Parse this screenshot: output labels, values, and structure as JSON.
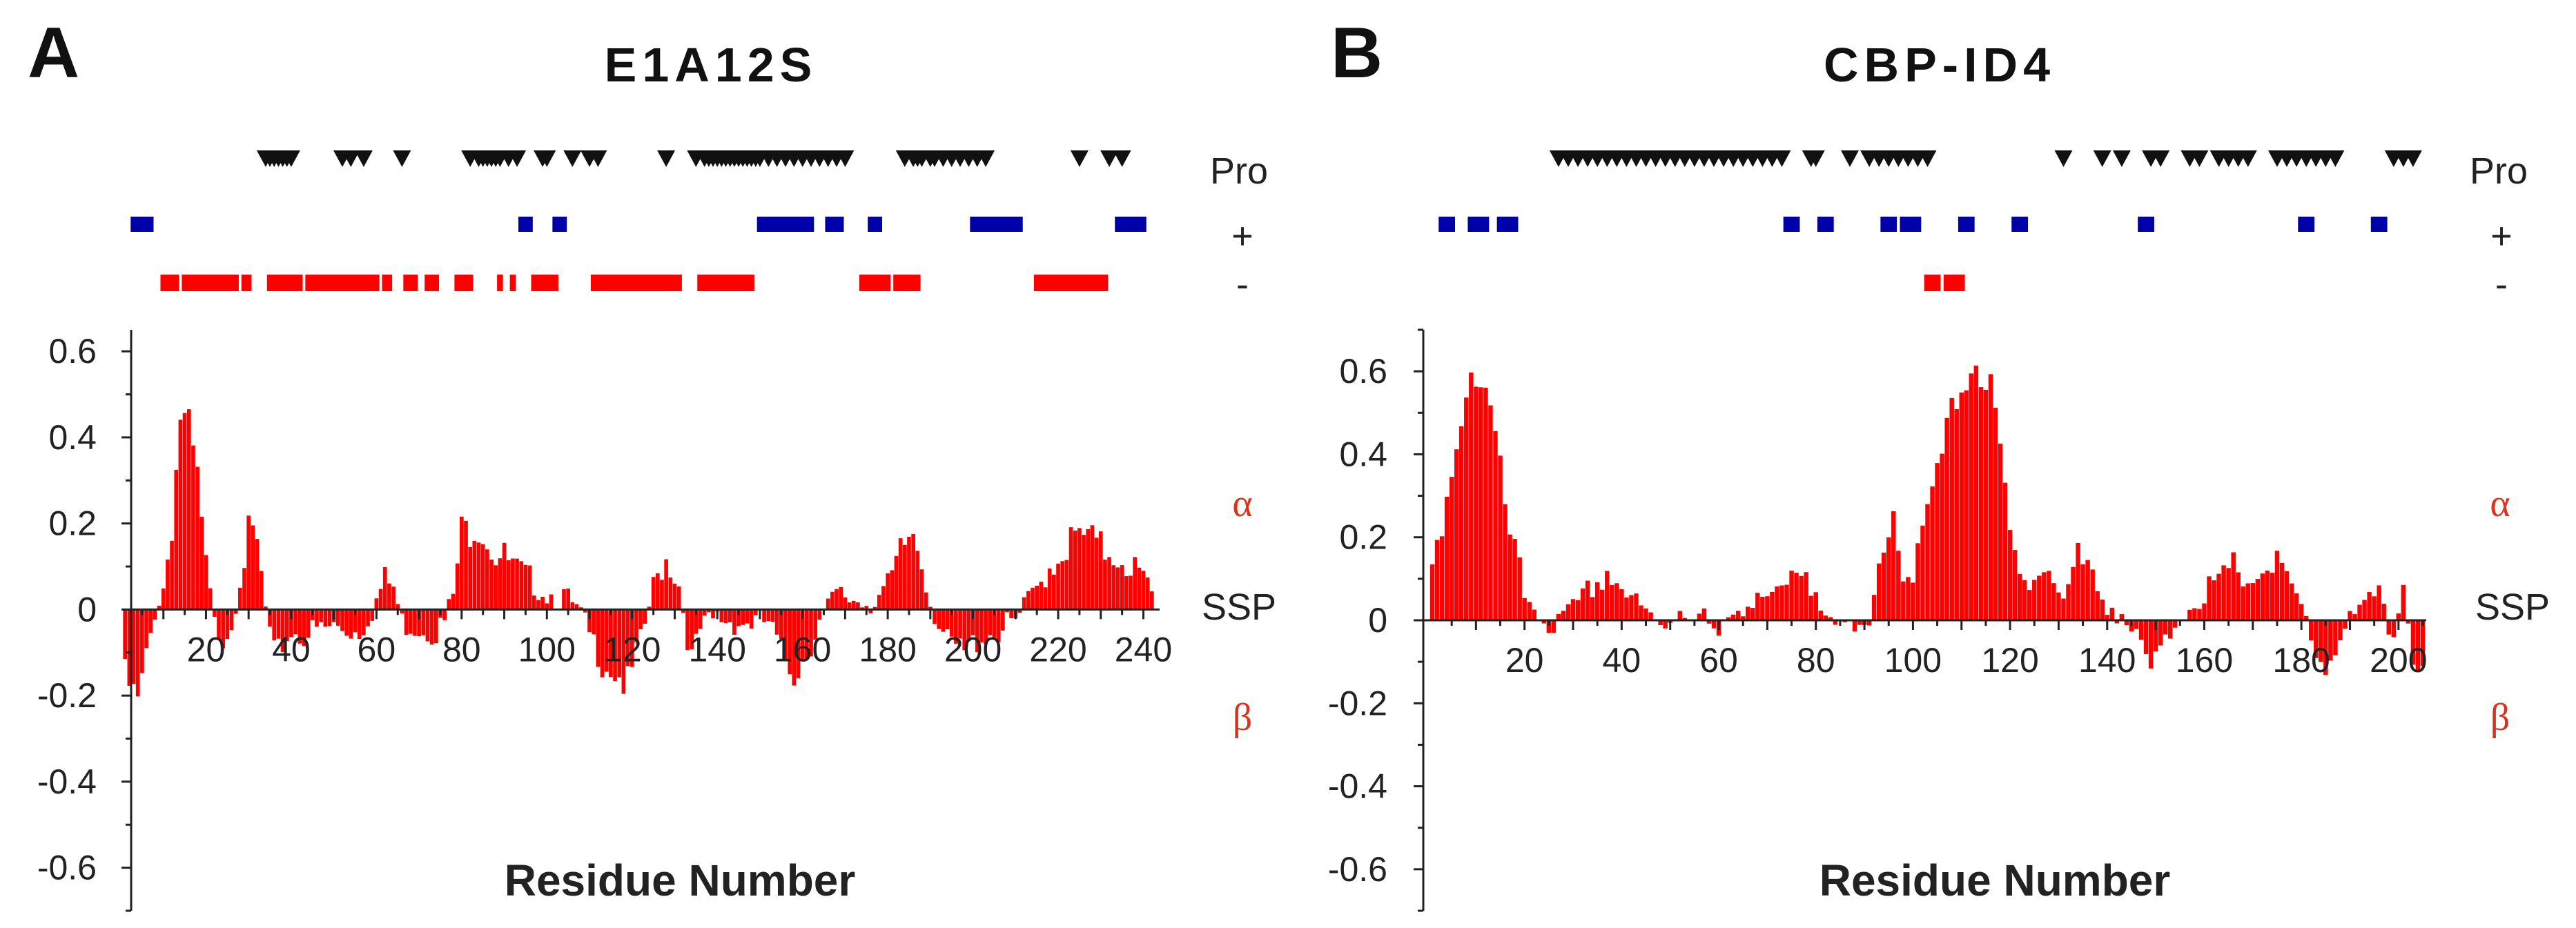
{
  "colors": {
    "helix": "#ff0000",
    "pro": "#111111",
    "positive": "#0000a8",
    "negative": "#ff0000",
    "plus_label": "#5b2d8e",
    "minus_label": "#d9351e",
    "side_labels": "#d9351e",
    "axis": "#222222"
  },
  "track_labels": {
    "pro": "Pro",
    "positive": "+",
    "negative": "-"
  },
  "side_labels": {
    "alpha": "α",
    "ssp": "SSP",
    "beta": "β"
  },
  "chart_data": [
    {
      "type": "bar",
      "panel": "A",
      "title": "E1A12S",
      "xlabel": "Residue Number",
      "ylabel": "SSP",
      "xlim": [
        0,
        243
      ],
      "ylim": [
        -0.7,
        0.65
      ],
      "xticks": [
        20,
        40,
        60,
        80,
        100,
        120,
        140,
        160,
        180,
        200,
        220,
        240
      ],
      "yticks": [
        -0.6,
        -0.4,
        -0.2,
        0,
        0.2,
        0.4,
        0.6
      ],
      "ytick_labels": [
        "-0.6",
        "-0.4",
        "-0.2",
        "0",
        "0.2",
        "0.4",
        "0.6"
      ],
      "ssp_profile_breakpoints": [
        [
          1,
          -0.16
        ],
        [
          4,
          -0.22
        ],
        [
          6,
          -0.12
        ],
        [
          8,
          0.0
        ],
        [
          10,
          0.05
        ],
        [
          12,
          0.2
        ],
        [
          14,
          0.45
        ],
        [
          16,
          0.42
        ],
        [
          18,
          0.3
        ],
        [
          20,
          0.1
        ],
        [
          22,
          -0.04
        ],
        [
          24,
          -0.06
        ],
        [
          26,
          -0.03
        ],
        [
          28,
          0.08
        ],
        [
          30,
          0.17
        ],
        [
          32,
          0.15
        ],
        [
          34,
          0.0
        ],
        [
          36,
          -0.12
        ],
        [
          38,
          -0.08
        ],
        [
          40,
          -0.05
        ],
        [
          42,
          -0.06
        ],
        [
          50,
          -0.04
        ],
        [
          56,
          -0.05
        ],
        [
          60,
          0.02
        ],
        [
          62,
          0.07
        ],
        [
          64,
          0.05
        ],
        [
          66,
          -0.03
        ],
        [
          70,
          -0.04
        ],
        [
          74,
          -0.05
        ],
        [
          76,
          -0.03
        ],
        [
          78,
          0.03
        ],
        [
          80,
          0.18
        ],
        [
          84,
          0.2
        ],
        [
          88,
          0.13
        ],
        [
          92,
          0.1
        ],
        [
          96,
          0.07
        ],
        [
          100,
          0.04
        ],
        [
          104,
          0.03
        ],
        [
          108,
          -0.02
        ],
        [
          112,
          -0.1
        ],
        [
          116,
          -0.14
        ],
        [
          119,
          -0.18
        ],
        [
          122,
          -0.08
        ],
        [
          125,
          0.05
        ],
        [
          128,
          0.12
        ],
        [
          131,
          0.06
        ],
        [
          134,
          -0.12
        ],
        [
          136,
          -0.05
        ],
        [
          140,
          -0.02
        ],
        [
          146,
          -0.03
        ],
        [
          152,
          -0.03
        ],
        [
          155,
          -0.1
        ],
        [
          158,
          -0.14
        ],
        [
          161,
          -0.1
        ],
        [
          164,
          -0.03
        ],
        [
          168,
          0.03
        ],
        [
          176,
          0.02
        ],
        [
          180,
          0.05
        ],
        [
          184,
          0.15
        ],
        [
          186,
          0.18
        ],
        [
          188,
          0.12
        ],
        [
          190,
          0.02
        ],
        [
          194,
          -0.08
        ],
        [
          198,
          -0.1
        ],
        [
          202,
          -0.06
        ],
        [
          206,
          -0.05
        ],
        [
          210,
          -0.03
        ],
        [
          214,
          0.03
        ],
        [
          218,
          0.1
        ],
        [
          222,
          0.15
        ],
        [
          226,
          0.17
        ],
        [
          230,
          0.14
        ],
        [
          234,
          0.13
        ],
        [
          238,
          0.1
        ],
        [
          241,
          0.05
        ],
        [
          243,
          0.0
        ]
      ],
      "proline_positions": [
        34,
        35,
        36,
        37,
        38,
        39,
        40,
        52,
        54,
        57,
        66,
        82,
        84,
        85,
        86,
        87,
        88,
        89,
        91,
        93,
        99,
        100,
        106,
        110,
        112,
        128,
        135,
        137,
        138,
        139,
        140,
        141,
        142,
        143,
        144,
        145,
        146,
        147,
        148,
        149,
        150,
        152,
        154,
        156,
        158,
        160,
        162,
        164,
        166,
        168,
        170,
        184,
        186,
        187,
        188,
        190,
        191,
        193,
        195,
        197,
        199,
        201,
        203,
        225,
        232,
        235
      ],
      "positive_positions": [
        3,
        4,
        5,
        6,
        7,
        94,
        95,
        96,
        102,
        103,
        104,
        150,
        151,
        152,
        153,
        154,
        155,
        156,
        157,
        158,
        159,
        160,
        161,
        162,
        166,
        167,
        168,
        169,
        176,
        177,
        178,
        200,
        201,
        202,
        203,
        204,
        205,
        206,
        207,
        208,
        209,
        210,
        211,
        234,
        235,
        236,
        237,
        238,
        239,
        240
      ],
      "negative_positions": [
        [
          10,
          13
        ],
        [
          15,
          27
        ],
        [
          29,
          30
        ],
        [
          35,
          42
        ],
        [
          44,
          60
        ],
        [
          62,
          63
        ],
        [
          67,
          69
        ],
        [
          72,
          74
        ],
        [
          79,
          82
        ],
        [
          89,
          89
        ],
        [
          92,
          92
        ],
        [
          97,
          102
        ],
        [
          111,
          131
        ],
        [
          136,
          148
        ],
        [
          174,
          180
        ],
        [
          182,
          187
        ],
        [
          215,
          231
        ]
      ]
    },
    {
      "type": "bar",
      "panel": "B",
      "title": "CBP-ID4",
      "xlabel": "Residue Number",
      "ylabel": "SSP",
      "xlim": [
        0,
        205
      ],
      "ylim": [
        -0.7,
        0.7
      ],
      "xticks": [
        20,
        40,
        60,
        80,
        100,
        120,
        140,
        160,
        180,
        200
      ],
      "yticks": [
        -0.6,
        -0.4,
        -0.2,
        0,
        0.2,
        0.4,
        0.6
      ],
      "ytick_labels": [
        "-0.6",
        "-0.4",
        "-0.2",
        "0",
        "0.2",
        "0.4",
        "0.6"
      ],
      "ssp_profile_breakpoints": [
        [
          1,
          0.12
        ],
        [
          3,
          0.18
        ],
        [
          6,
          0.45
        ],
        [
          9,
          0.6
        ],
        [
          11,
          0.58
        ],
        [
          13,
          0.5
        ],
        [
          15,
          0.35
        ],
        [
          17,
          0.2
        ],
        [
          20,
          0.06
        ],
        [
          23,
          0.02
        ],
        [
          26,
          -0.02
        ],
        [
          30,
          0.02
        ],
        [
          34,
          0.08
        ],
        [
          37,
          0.12
        ],
        [
          40,
          0.08
        ],
        [
          44,
          0.02
        ],
        [
          48,
          -0.02
        ],
        [
          52,
          0.03
        ],
        [
          56,
          0.02
        ],
        [
          60,
          -0.05
        ],
        [
          64,
          0.03
        ],
        [
          68,
          0.07
        ],
        [
          72,
          0.05
        ],
        [
          76,
          0.1
        ],
        [
          80,
          0.07
        ],
        [
          84,
          0.02
        ],
        [
          88,
          -0.05
        ],
        [
          91,
          -0.02
        ],
        [
          94,
          0.2
        ],
        [
          96,
          0.28
        ],
        [
          98,
          0.1
        ],
        [
          101,
          0.15
        ],
        [
          104,
          0.3
        ],
        [
          107,
          0.45
        ],
        [
          110,
          0.58
        ],
        [
          113,
          0.62
        ],
        [
          116,
          0.55
        ],
        [
          118,
          0.4
        ],
        [
          120,
          0.2
        ],
        [
          122,
          0.1
        ],
        [
          125,
          0.13
        ],
        [
          128,
          0.12
        ],
        [
          131,
          0.05
        ],
        [
          134,
          0.15
        ],
        [
          137,
          0.1
        ],
        [
          140,
          0.04
        ],
        [
          143,
          0.02
        ],
        [
          146,
          -0.05
        ],
        [
          149,
          -0.12
        ],
        [
          152,
          -0.06
        ],
        [
          155,
          0.02
        ],
        [
          158,
          0.05
        ],
        [
          162,
          0.08
        ],
        [
          166,
          0.12
        ],
        [
          170,
          0.1
        ],
        [
          174,
          0.14
        ],
        [
          178,
          0.08
        ],
        [
          182,
          -0.05
        ],
        [
          185,
          -0.12
        ],
        [
          188,
          -0.03
        ],
        [
          192,
          0.02
        ],
        [
          196,
          0.05
        ],
        [
          199,
          -0.04
        ],
        [
          201,
          0.1
        ],
        [
          203,
          -0.08
        ],
        [
          205,
          -0.12
        ]
      ],
      "proline_positions": [
        27,
        29,
        31,
        33,
        35,
        37,
        39,
        41,
        43,
        45,
        47,
        49,
        51,
        53,
        55,
        57,
        59,
        61,
        63,
        65,
        67,
        69,
        71,
        73,
        79,
        80,
        87,
        91,
        93,
        95,
        97,
        99,
        101,
        103,
        131,
        139,
        143,
        149,
        151,
        157,
        159,
        163,
        165,
        167,
        169,
        175,
        177,
        179,
        181,
        183,
        185,
        187,
        199,
        201,
        203
      ],
      "positive_positions": [
        [
          3,
          5
        ],
        [
          9,
          12
        ],
        [
          15,
          18
        ],
        [
          74,
          76
        ],
        [
          81,
          83
        ],
        [
          94,
          96
        ],
        [
          98,
          101
        ],
        [
          110,
          112
        ],
        [
          121,
          123
        ],
        [
          147,
          149
        ],
        [
          180,
          182
        ],
        [
          195,
          197
        ]
      ],
      "negative_positions": [
        [
          103,
          105
        ],
        [
          107,
          110
        ]
      ]
    }
  ]
}
